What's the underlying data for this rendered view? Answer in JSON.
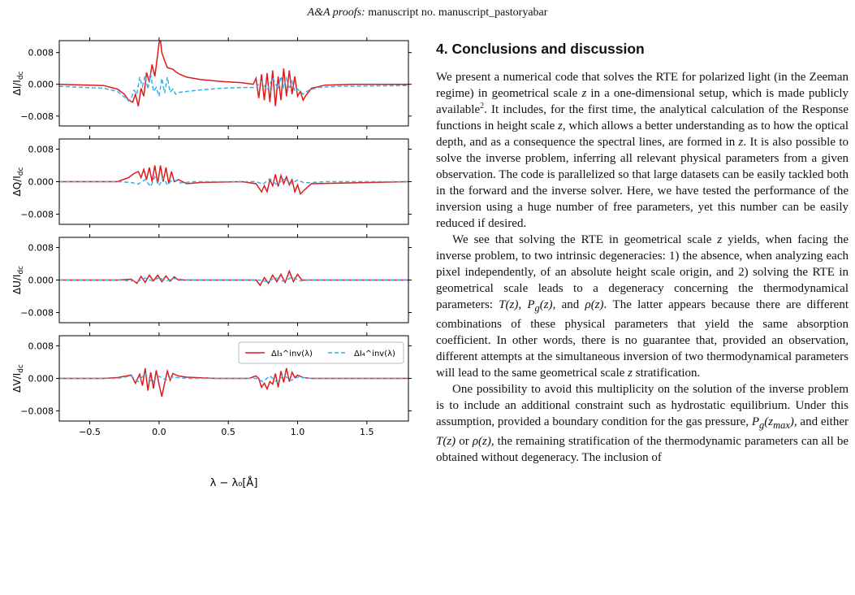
{
  "header": {
    "journal": "A&A proofs:",
    "manuscript": "manuscript no. manuscript_pastoryabar"
  },
  "figure": {
    "xlabel": "λ − λ₀[Å]",
    "legend": {
      "series_a": {
        "label": "ΔI₃^inv(λ)",
        "color": "#e0191b"
      },
      "series_b": {
        "label": "ΔI₄^inv(λ)",
        "color": "#3aaee6"
      }
    }
  },
  "chart_data": [
    {
      "type": "line",
      "ylabel": "ΔI/I_dc",
      "xlim": [
        -0.72,
        1.8
      ],
      "ylim": [
        -0.0105,
        0.011
      ],
      "xticks": [
        "−0.5",
        "0.0",
        "0.5",
        "1.0",
        "1.5"
      ],
      "yticks": [
        "−0.008",
        "0.000",
        "0.008"
      ],
      "series": [
        {
          "x": [
            -0.72,
            -0.4,
            -0.3,
            -0.25,
            -0.22,
            -0.19,
            -0.17,
            -0.15,
            -0.13,
            -0.11,
            -0.09,
            -0.07,
            -0.05,
            -0.03,
            -0.01,
            0.0,
            0.01,
            0.02,
            0.04,
            0.06,
            0.08,
            0.1,
            0.12,
            0.15,
            0.2,
            0.3,
            0.45,
            0.6,
            0.68,
            0.7,
            0.72,
            0.74,
            0.76,
            0.78,
            0.8,
            0.82,
            0.84,
            0.86,
            0.88,
            0.9,
            0.92,
            0.94,
            0.96,
            0.98,
            1.0,
            1.02,
            1.04,
            1.06,
            1.1,
            1.2,
            1.4,
            1.8
          ],
          "y": [
            0.0,
            -0.0003,
            -0.0012,
            -0.0025,
            -0.004,
            -0.0045,
            -0.0025,
            -0.0055,
            -0.001,
            -0.003,
            0.003,
            0.0005,
            0.005,
            0.002,
            0.0075,
            0.0105,
            0.011,
            0.008,
            0.006,
            0.0042,
            0.004,
            0.0038,
            0.0032,
            0.0025,
            0.0018,
            0.0012,
            0.0007,
            0.0004,
            0.0,
            0.0015,
            -0.0035,
            0.0025,
            -0.004,
            0.0028,
            -0.0045,
            0.0035,
            -0.0055,
            0.002,
            -0.004,
            0.004,
            -0.003,
            0.0035,
            -0.0025,
            0.002,
            -0.003,
            -0.0018,
            -0.004,
            -0.0028,
            -0.001,
            -0.0002,
            0.0,
            0.0
          ]
        },
        {
          "x": [
            -0.72,
            -0.4,
            -0.3,
            -0.25,
            -0.22,
            -0.2,
            -0.18,
            -0.16,
            -0.14,
            -0.12,
            -0.1,
            -0.08,
            -0.06,
            -0.04,
            -0.02,
            0.0,
            0.02,
            0.04,
            0.06,
            0.08,
            0.1,
            0.12,
            0.15,
            0.2,
            0.3,
            0.45,
            0.6,
            0.7,
            0.74,
            0.78,
            0.82,
            0.86,
            0.88,
            0.9,
            0.92,
            0.94,
            0.96,
            0.98,
            1.0,
            1.04,
            1.08,
            1.15,
            1.3,
            1.8
          ],
          "y": [
            -0.0005,
            -0.001,
            -0.0018,
            -0.0032,
            -0.0042,
            -0.0035,
            -0.0015,
            -0.0025,
            0.0018,
            -0.0005,
            0.0022,
            -0.0012,
            0.0025,
            -0.0018,
            -0.0008,
            -0.003,
            0.0015,
            -0.0022,
            0.0018,
            -0.002,
            -0.0012,
            -0.0025,
            -0.002,
            -0.0018,
            -0.0014,
            -0.001,
            -0.0008,
            -0.0008,
            0.0008,
            -0.0015,
            0.0016,
            -0.0012,
            0.002,
            -0.0008,
            0.0015,
            -0.0012,
            0.0008,
            -0.0018,
            -0.0012,
            -0.0025,
            -0.0015,
            -0.0008,
            -0.0005,
            -0.0003
          ]
        }
      ]
    },
    {
      "type": "line",
      "ylabel": "ΔQ/I_dc",
      "xlim": [
        -0.72,
        1.8
      ],
      "ylim": [
        -0.0105,
        0.0105
      ],
      "xticks": [
        "−0.5",
        "0.0",
        "0.5",
        "1.0",
        "1.5"
      ],
      "yticks": [
        "−0.008",
        "0.000",
        "0.008"
      ],
      "series": [
        {
          "x": [
            -0.72,
            -0.3,
            -0.22,
            -0.18,
            -0.15,
            -0.13,
            -0.11,
            -0.09,
            -0.07,
            -0.05,
            -0.03,
            -0.01,
            0.01,
            0.03,
            0.05,
            0.07,
            0.09,
            0.11,
            0.14,
            0.2,
            0.3,
            0.6,
            0.7,
            0.72,
            0.74,
            0.76,
            0.78,
            0.8,
            0.82,
            0.84,
            0.86,
            0.88,
            0.9,
            0.92,
            0.94,
            0.96,
            0.98,
            1.0,
            1.02,
            1.05,
            1.1,
            1.8
          ],
          "y": [
            0.0,
            0.0,
            0.001,
            0.002,
            0.0025,
            0.001,
            0.003,
            0.0005,
            0.0035,
            0.0,
            0.004,
            -0.0005,
            0.004,
            0.0,
            0.0035,
            -0.0005,
            0.0025,
            0.0,
            0.0005,
            -0.0005,
            -0.0002,
            0.0,
            -0.0005,
            -0.0015,
            -0.0025,
            -0.001,
            -0.0025,
            0.0005,
            -0.001,
            0.0018,
            -0.0012,
            0.0015,
            -0.0005,
            0.0012,
            -0.0008,
            0.0005,
            -0.0025,
            -0.0008,
            -0.003,
            -0.002,
            -0.0005,
            0.0
          ]
        },
        {
          "x": [
            -0.72,
            -0.3,
            -0.2,
            -0.15,
            -0.1,
            -0.06,
            -0.03,
            0.0,
            0.03,
            0.06,
            0.1,
            0.15,
            0.25,
            0.7,
            0.75,
            0.8,
            0.85,
            0.9,
            0.95,
            1.0,
            1.05,
            1.2,
            1.8
          ],
          "y": [
            0.0,
            0.0,
            -0.0002,
            -0.0006,
            0.0005,
            -0.0012,
            0.0012,
            -0.001,
            0.001,
            -0.0008,
            0.0006,
            -0.0003,
            0.0,
            0.0,
            -0.0006,
            0.0007,
            -0.0008,
            0.0006,
            -0.0005,
            0.0004,
            -0.0003,
            0.0,
            0.0
          ]
        }
      ]
    },
    {
      "type": "line",
      "ylabel": "ΔU/I_dc",
      "xlim": [
        -0.72,
        1.8
      ],
      "ylim": [
        -0.0105,
        0.0105
      ],
      "xticks": [
        "−0.5",
        "0.0",
        "0.5",
        "1.0",
        "1.5"
      ],
      "yticks": [
        "−0.008",
        "0.000",
        "0.008"
      ],
      "series": [
        {
          "x": [
            -0.72,
            -0.3,
            -0.2,
            -0.16,
            -0.13,
            -0.1,
            -0.07,
            -0.04,
            -0.01,
            0.02,
            0.05,
            0.08,
            0.11,
            0.14,
            0.2,
            0.7,
            0.73,
            0.76,
            0.79,
            0.82,
            0.85,
            0.88,
            0.91,
            0.94,
            0.97,
            1.0,
            1.03,
            1.08,
            1.8
          ],
          "y": [
            0.0,
            0.0,
            0.0002,
            -0.0008,
            0.0009,
            -0.0006,
            0.0012,
            -0.0002,
            0.0012,
            -0.0004,
            0.001,
            -0.0003,
            0.0008,
            0.0,
            0.0,
            0.0,
            -0.0013,
            0.0006,
            -0.0008,
            0.0012,
            -0.0004,
            0.0014,
            -0.0006,
            0.0022,
            -0.0004,
            0.0014,
            0.0,
            0.0,
            0.0
          ]
        },
        {
          "x": [
            -0.72,
            -0.3,
            -0.15,
            -0.1,
            -0.05,
            0.0,
            0.05,
            0.1,
            0.2,
            0.72,
            0.78,
            0.84,
            0.9,
            0.96,
            1.02,
            1.1,
            1.8
          ],
          "y": [
            0.0,
            0.0,
            -0.0003,
            0.0005,
            -0.0002,
            0.0006,
            -0.0003,
            0.0004,
            0.0,
            0.0,
            -0.0004,
            0.0005,
            -0.0003,
            0.0007,
            -0.0002,
            0.0,
            0.0
          ]
        }
      ]
    },
    {
      "type": "line",
      "ylabel": "ΔV/I_dc",
      "xlim": [
        -0.72,
        1.8
      ],
      "ylim": [
        -0.0105,
        0.0105
      ],
      "xticks": [
        "−0.5",
        "0.0",
        "0.5",
        "1.0",
        "1.5"
      ],
      "yticks": [
        "−0.008",
        "0.000",
        "0.008"
      ],
      "series": [
        {
          "x": [
            -0.72,
            -0.4,
            -0.3,
            -0.25,
            -0.2,
            -0.17,
            -0.14,
            -0.12,
            -0.1,
            -0.08,
            -0.06,
            -0.04,
            -0.02,
            0.0,
            0.02,
            0.04,
            0.06,
            0.08,
            0.1,
            0.14,
            0.2,
            0.4,
            0.65,
            0.7,
            0.72,
            0.74,
            0.76,
            0.78,
            0.8,
            0.82,
            0.84,
            0.86,
            0.88,
            0.9,
            0.92,
            0.94,
            0.96,
            0.98,
            1.0,
            1.04,
            1.1,
            1.2,
            1.8
          ],
          "y": [
            0.0,
            0.0,
            0.0002,
            0.0005,
            0.0008,
            -0.0012,
            0.001,
            -0.0018,
            0.0025,
            -0.003,
            0.0015,
            -0.0025,
            0.002,
            -0.0015,
            -0.0045,
            -0.0012,
            0.0018,
            -0.0005,
            0.0012,
            0.0006,
            0.0003,
            0.0,
            0.0,
            0.0006,
            0.0,
            -0.0022,
            -0.0012,
            -0.0026,
            -0.0008,
            -0.0014,
            0.0012,
            -0.0022,
            0.0018,
            -0.001,
            0.0025,
            -0.0008,
            0.0015,
            0.0002,
            0.0008,
            0.0002,
            0.0,
            0.0,
            0.0
          ]
        },
        {
          "x": [
            -0.72,
            -0.3,
            -0.2,
            -0.15,
            -0.1,
            -0.05,
            0.0,
            0.05,
            0.1,
            0.2,
            0.7,
            0.75,
            0.8,
            0.85,
            0.9,
            0.95,
            1.0,
            1.1,
            1.8
          ],
          "y": [
            0.0,
            0.0,
            0.0006,
            -0.0008,
            0.0012,
            -0.0009,
            0.0005,
            -0.0004,
            0.0003,
            0.0,
            0.0,
            -0.0008,
            0.0006,
            -0.0009,
            0.0008,
            -0.0005,
            0.0003,
            0.0,
            0.0
          ]
        }
      ]
    }
  ],
  "section": {
    "title": "4. Conclusions and discussion",
    "p1": {
      "a": "We present a numerical code that solves the RTE for polarized light (in the Zeeman regime) in geometrical scale ",
      "b": " in a one-dimensional setup, which is made publicly available",
      "fn": "2",
      "c": ". It includes, for the first time, the analytical calculation of the Response functions in height scale ",
      "d": ", which allows a better understanding as to how the optical depth, and as a consequence the spectral lines, are formed in ",
      "e": ". It is also possible to solve the inverse problem, inferring all relevant physical parameters from a given observation. The code is parallelized so that large datasets can be easily tackled both in the forward and the inverse solver. Here, we have tested the performance of the inversion using a huge number of free parameters, yet this number can be easily reduced if desired."
    },
    "p2": {
      "a": "We see that solving the RTE in geometrical scale ",
      "b": " yields, when facing the inverse problem, to two intrinsic degeneracies: 1) the absence, when analyzing each pixel independently, of an absolute height scale origin, and 2) solving the RTE in geometrical scale leads to a degeneracy concerning the thermodynamical parameters: ",
      "c": ", and ",
      "d": ". The latter appears because there are different combinations of these physical parameters that yield the same absorption coefficient. In other words, there is no guarantee that, provided an observation, different attempts at the simultaneous inversion of two thermodynamical parameters will lead to the same geometrical scale ",
      "e": " stratification."
    },
    "p3": {
      "a": "One possibility to avoid this multiplicity on the solution of the inverse problem is to include an additional constraint such as hydrostatic equilibrium. Under this assumption, provided a boundary condition for the gas pressure, ",
      "b": ", and either ",
      "c": " or ",
      "d": ", the remaining stratification of the thermodynamic parameters can all be obtained without degeneracy. The inclusion of"
    },
    "math": {
      "z": "z",
      "T_z": "T(z)",
      "Pg_z": "P",
      "g": "g",
      "of_z": "(z)",
      "rho_z": "ρ(z)",
      "comma": ", ",
      "Pg_zmax_arg": "(z",
      "max": "max",
      "close": ")"
    }
  }
}
